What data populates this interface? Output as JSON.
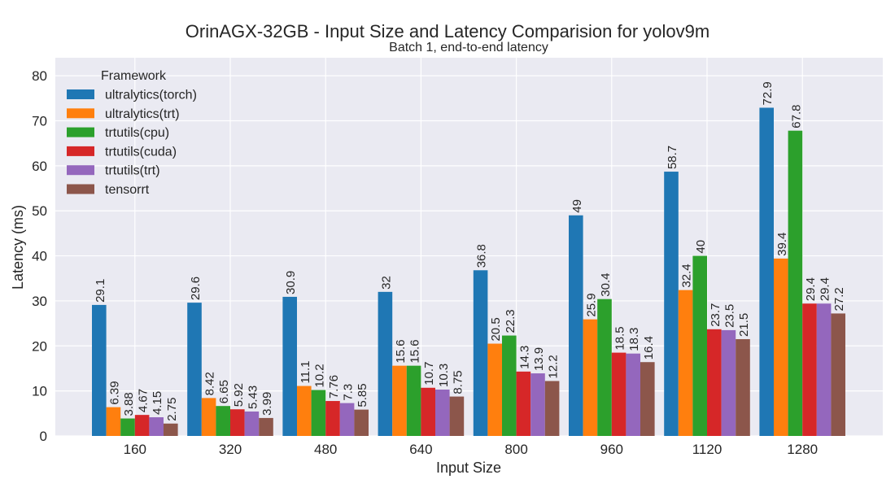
{
  "chart_data": {
    "type": "bar",
    "title": "OrinAGX-32GB - Input Size and Latency Comparision for yolov9m",
    "subtitle": "Batch 1, end-to-end latency",
    "xlabel": "Input Size",
    "ylabel": "Latency (ms)",
    "ylim": [
      0,
      84
    ],
    "yticks": [
      0,
      10,
      20,
      30,
      40,
      50,
      60,
      70,
      80
    ],
    "grid": true,
    "legend": {
      "title": "Framework",
      "placement": "top-left"
    },
    "categories": [
      "160",
      "320",
      "480",
      "640",
      "800",
      "960",
      "1120",
      "1280"
    ],
    "series": [
      {
        "name": "ultralytics(torch)",
        "color": "#1f77b4",
        "values": [
          29.1,
          29.6,
          30.9,
          32,
          36.8,
          49,
          58.7,
          72.9
        ],
        "labels": [
          "29.1",
          "29.6",
          "30.9",
          "32",
          "36.8",
          "49",
          "58.7",
          "72.9"
        ]
      },
      {
        "name": "ultralytics(trt)",
        "color": "#ff7f0e",
        "values": [
          6.39,
          8.42,
          11.1,
          15.6,
          20.5,
          25.9,
          32.4,
          39.4
        ],
        "labels": [
          "6.39",
          "8.42",
          "11.1",
          "15.6",
          "20.5",
          "25.9",
          "32.4",
          "39.4"
        ]
      },
      {
        "name": "trtutils(cpu)",
        "color": "#2ca02c",
        "values": [
          3.88,
          6.65,
          10.2,
          15.6,
          22.3,
          30.4,
          40,
          67.8
        ],
        "labels": [
          "3.88",
          "6.65",
          "10.2",
          "15.6",
          "22.3",
          "30.4",
          "40",
          "67.8"
        ]
      },
      {
        "name": "trtutils(cuda)",
        "color": "#d62728",
        "values": [
          4.67,
          5.92,
          7.76,
          10.7,
          14.3,
          18.5,
          23.7,
          29.4
        ],
        "labels": [
          "4.67",
          "5.92",
          "7.76",
          "10.7",
          "14.3",
          "18.5",
          "23.7",
          "29.4"
        ]
      },
      {
        "name": "trtutils(trt)",
        "color": "#9467bd",
        "values": [
          4.15,
          5.43,
          7.3,
          10.3,
          13.9,
          18.3,
          23.5,
          29.4
        ],
        "labels": [
          "4.15",
          "5.43",
          "7.3",
          "10.3",
          "13.9",
          "18.3",
          "23.5",
          "29.4"
        ]
      },
      {
        "name": "tensorrt",
        "color": "#8c564b",
        "values": [
          2.75,
          3.99,
          5.85,
          8.75,
          12.2,
          16.4,
          21.5,
          27.2
        ],
        "labels": [
          "2.75",
          "3.99",
          "5.85",
          "8.75",
          "12.2",
          "16.4",
          "21.5",
          "27.2"
        ]
      }
    ]
  }
}
